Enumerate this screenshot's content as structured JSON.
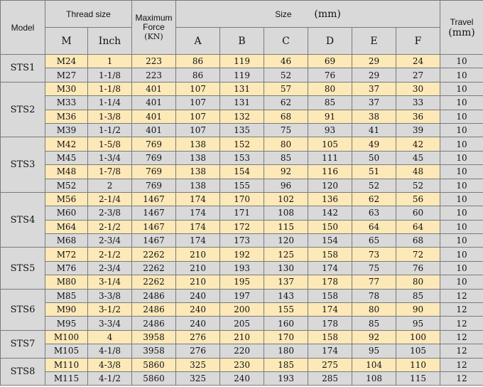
{
  "headers": {
    "model": "Model",
    "thread_size": "Thread size",
    "m": "M",
    "inch": "Inch",
    "max_force": "Maximum Force",
    "force_unit": "(KN)",
    "size": "Size",
    "size_unit": "(mm)",
    "a": "A",
    "b": "B",
    "c": "C",
    "d": "D",
    "e": "E",
    "f": "F",
    "travel": "Travel",
    "travel_unit": "(mm)"
  },
  "groups": [
    {
      "model": "STS1",
      "rows": [
        {
          "m": "M24",
          "inch": "1",
          "force": "223",
          "a": "86",
          "b": "119",
          "c": "46",
          "d": "69",
          "e": "29",
          "f": "24",
          "travel": "10"
        },
        {
          "m": "M27",
          "inch": "1-1/8",
          "force": "223",
          "a": "86",
          "b": "119",
          "c": "52",
          "d": "76",
          "e": "29",
          "f": "27",
          "travel": "10"
        }
      ]
    },
    {
      "model": "STS2",
      "rows": [
        {
          "m": "M30",
          "inch": "1-1/8",
          "force": "401",
          "a": "107",
          "b": "131",
          "c": "57",
          "d": "80",
          "e": "37",
          "f": "30",
          "travel": "10"
        },
        {
          "m": "M33",
          "inch": "1-1/4",
          "force": "401",
          "a": "107",
          "b": "131",
          "c": "62",
          "d": "85",
          "e": "37",
          "f": "33",
          "travel": "10"
        },
        {
          "m": "M36",
          "inch": "1-3/8",
          "force": "401",
          "a": "107",
          "b": "132",
          "c": "68",
          "d": "91",
          "e": "38",
          "f": "36",
          "travel": "10"
        },
        {
          "m": "M39",
          "inch": "1-1/2",
          "force": "401",
          "a": "107",
          "b": "135",
          "c": "75",
          "d": "93",
          "e": "41",
          "f": "39",
          "travel": "10"
        }
      ]
    },
    {
      "model": "STS3",
      "rows": [
        {
          "m": "M42",
          "inch": "1-5/8",
          "force": "769",
          "a": "138",
          "b": "152",
          "c": "80",
          "d": "105",
          "e": "49",
          "f": "42",
          "travel": "10"
        },
        {
          "m": "M45",
          "inch": "1-3/4",
          "force": "769",
          "a": "138",
          "b": "153",
          "c": "85",
          "d": "111",
          "e": "50",
          "f": "45",
          "travel": "10"
        },
        {
          "m": "M48",
          "inch": "1-7/8",
          "force": "769",
          "a": "138",
          "b": "154",
          "c": "92",
          "d": "116",
          "e": "51",
          "f": "48",
          "travel": "10"
        },
        {
          "m": "M52",
          "inch": "2",
          "force": "769",
          "a": "138",
          "b": "155",
          "c": "96",
          "d": "120",
          "e": "52",
          "f": "52",
          "travel": "10"
        }
      ]
    },
    {
      "model": "STS4",
      "rows": [
        {
          "m": "M56",
          "inch": "2-1/4",
          "force": "1467",
          "a": "174",
          "b": "170",
          "c": "102",
          "d": "136",
          "e": "62",
          "f": "56",
          "travel": "10"
        },
        {
          "m": "M60",
          "inch": "2-3/8",
          "force": "1467",
          "a": "174",
          "b": "171",
          "c": "108",
          "d": "142",
          "e": "63",
          "f": "60",
          "travel": "10"
        },
        {
          "m": "M64",
          "inch": "2-1/2",
          "force": "1467",
          "a": "174",
          "b": "172",
          "c": "115",
          "d": "150",
          "e": "64",
          "f": "64",
          "travel": "10"
        },
        {
          "m": "M68",
          "inch": "2-3/4",
          "force": "1467",
          "a": "174",
          "b": "173",
          "c": "120",
          "d": "154",
          "e": "65",
          "f": "68",
          "travel": "10"
        }
      ]
    },
    {
      "model": "STS5",
      "rows": [
        {
          "m": "M72",
          "inch": "2-1/2",
          "force": "2262",
          "a": "210",
          "b": "192",
          "c": "125",
          "d": "158",
          "e": "73",
          "f": "72",
          "travel": "10"
        },
        {
          "m": "M76",
          "inch": "2-3/4",
          "force": "2262",
          "a": "210",
          "b": "193",
          "c": "130",
          "d": "174",
          "e": "75",
          "f": "76",
          "travel": "10"
        },
        {
          "m": "M80",
          "inch": "3-1/4",
          "force": "2262",
          "a": "210",
          "b": "195",
          "c": "137",
          "d": "178",
          "e": "77",
          "f": "80",
          "travel": "10"
        }
      ]
    },
    {
      "model": "STS6",
      "rows": [
        {
          "m": "M85",
          "inch": "3-3/8",
          "force": "2486",
          "a": "240",
          "b": "197",
          "c": "143",
          "d": "158",
          "e": "78",
          "f": "85",
          "travel": "12"
        },
        {
          "m": "M90",
          "inch": "3-1/2",
          "force": "2486",
          "a": "240",
          "b": "200",
          "c": "155",
          "d": "174",
          "e": "80",
          "f": "90",
          "travel": "12"
        },
        {
          "m": "M95",
          "inch": "3-3/4",
          "force": "2486",
          "a": "240",
          "b": "205",
          "c": "160",
          "d": "178",
          "e": "85",
          "f": "95",
          "travel": "12"
        }
      ]
    },
    {
      "model": "STS7",
      "rows": [
        {
          "m": "M100",
          "inch": "4",
          "force": "3958",
          "a": "276",
          "b": "210",
          "c": "170",
          "d": "158",
          "e": "92",
          "f": "100",
          "travel": "12"
        },
        {
          "m": "M105",
          "inch": "4-1/8",
          "force": "3958",
          "a": "276",
          "b": "220",
          "c": "180",
          "d": "174",
          "e": "95",
          "f": "105",
          "travel": "12"
        }
      ]
    },
    {
      "model": "STS8",
      "rows": [
        {
          "m": "M110",
          "inch": "4-3/8",
          "force": "5860",
          "a": "325",
          "b": "230",
          "c": "185",
          "d": "275",
          "e": "104",
          "f": "110",
          "travel": "12"
        },
        {
          "m": "M115",
          "inch": "4-1/2",
          "force": "5860",
          "a": "325",
          "b": "240",
          "c": "193",
          "d": "285",
          "e": "108",
          "f": "115",
          "travel": "12"
        }
      ]
    }
  ]
}
